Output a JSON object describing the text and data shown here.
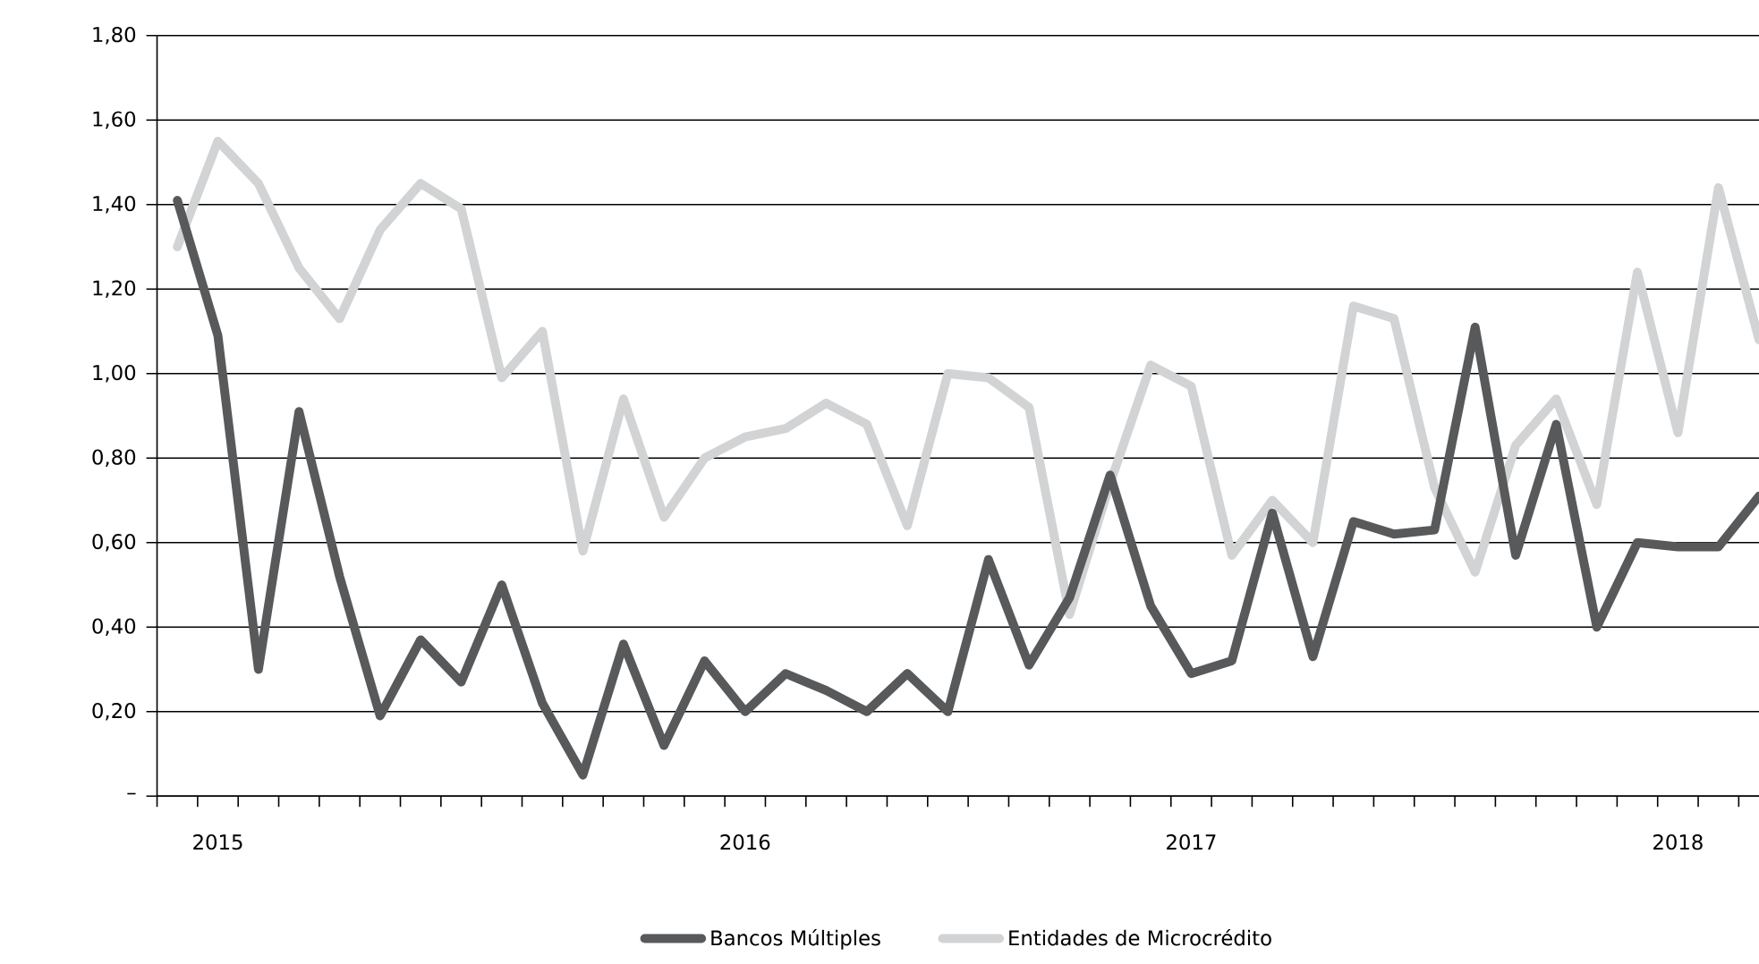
{
  "chart_data": {
    "type": "line",
    "categories": [
      null,
      "2015",
      null,
      null,
      null,
      null,
      null,
      null,
      null,
      null,
      null,
      null,
      null,
      null,
      "2016",
      null,
      null,
      null,
      null,
      null,
      null,
      null,
      null,
      null,
      null,
      "2017",
      null,
      null,
      null,
      null,
      null,
      null,
      null,
      null,
      null,
      null,
      null,
      "2018",
      null,
      null
    ],
    "series": [
      {
        "name": "Bancos Múltiples",
        "color": "#58595b",
        "values": [
          1.41,
          1.09,
          0.3,
          0.91,
          0.52,
          0.19,
          0.37,
          0.27,
          0.5,
          0.22,
          0.05,
          0.36,
          0.12,
          0.32,
          0.2,
          0.29,
          0.25,
          0.2,
          0.29,
          0.2,
          0.56,
          0.31,
          0.47,
          0.76,
          0.45,
          0.29,
          0.32,
          0.67,
          0.33,
          0.65,
          0.62,
          0.63,
          1.11,
          0.57,
          0.88,
          0.4,
          0.6,
          0.59,
          0.59,
          0.71
        ]
      },
      {
        "name": "Entidades de Microcrédito",
        "color": "#d1d3d4",
        "values": [
          1.3,
          1.55,
          1.45,
          1.25,
          1.13,
          1.34,
          1.45,
          1.39,
          0.99,
          1.1,
          0.58,
          0.94,
          0.66,
          0.8,
          0.85,
          0.87,
          0.93,
          0.88,
          0.64,
          1.0,
          0.99,
          0.92,
          0.43,
          0.74,
          1.02,
          0.97,
          0.57,
          0.7,
          0.6,
          1.16,
          1.13,
          0.73,
          0.53,
          0.83,
          0.94,
          0.69,
          1.24,
          0.86,
          1.44,
          1.08
        ]
      }
    ],
    "ylim": [
      0,
      1.8
    ],
    "yticks": [
      {
        "value": 0,
        "label": "–"
      },
      {
        "value": 0.2,
        "label": "0,20"
      },
      {
        "value": 0.4,
        "label": "0,40"
      },
      {
        "value": 0.6,
        "label": "0,60"
      },
      {
        "value": 0.8,
        "label": "0,80"
      },
      {
        "value": 1.0,
        "label": "1,00"
      },
      {
        "value": 1.2,
        "label": "1,20"
      },
      {
        "value": 1.4,
        "label": "1,40"
      },
      {
        "value": 1.6,
        "label": "1,60"
      },
      {
        "value": 1.8,
        "label": "1,80"
      }
    ],
    "grid": "y",
    "legend": "bottom",
    "line_style": "solid"
  }
}
